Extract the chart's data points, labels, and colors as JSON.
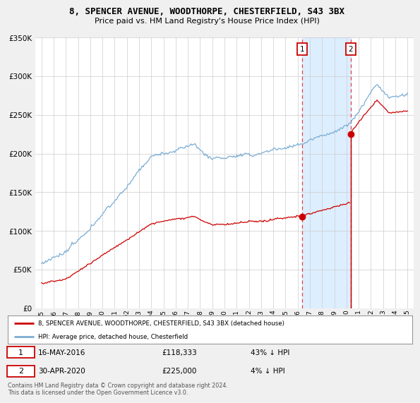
{
  "title": "8, SPENCER AVENUE, WOODTHORPE, CHESTERFIELD, S43 3BX",
  "subtitle": "Price paid vs. HM Land Registry's House Price Index (HPI)",
  "legend_line1": "8, SPENCER AVENUE, WOODTHORPE, CHESTERFIELD, S43 3BX (detached house)",
  "legend_line2": "HPI: Average price, detached house, Chesterfield",
  "annotation1_label": "1",
  "annotation1_date": "16-MAY-2016",
  "annotation1_price": "£118,333",
  "annotation1_pct": "43% ↓ HPI",
  "annotation2_label": "2",
  "annotation2_date": "30-APR-2020",
  "annotation2_price": "£225,000",
  "annotation2_pct": "4% ↓ HPI",
  "footer": "Contains HM Land Registry data © Crown copyright and database right 2024.\nThis data is licensed under the Open Government Licence v3.0.",
  "hpi_color": "#7aadd4",
  "price_color": "#cc0000",
  "shade_color": "#ddeeff",
  "sale1_x": 2016.37,
  "sale1_y": 118333,
  "sale2_x": 2020.33,
  "sale2_y": 225000,
  "vline1_x": 2016.37,
  "vline2_x": 2020.33,
  "ylim": [
    0,
    350000
  ],
  "xlim": [
    1994.5,
    2025.5
  ],
  "yticks": [
    0,
    50000,
    100000,
    150000,
    200000,
    250000,
    300000,
    350000
  ],
  "background_color": "#f0f0f0",
  "plot_bg_color": "#ffffff"
}
